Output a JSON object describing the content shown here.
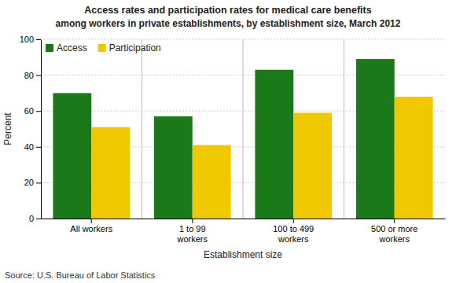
{
  "chart_data": {
    "type": "bar",
    "title": "Access rates and participation rates for medical care benefits",
    "subtitle": "among workers in private establishments, by establishment size, March 2012",
    "categories": [
      "All workers",
      "1 to 99\nworkers",
      "100 to 499\nworkers",
      "500 or more\nworkers"
    ],
    "series": [
      {
        "name": "Access",
        "color": "#1a7a1a",
        "values": [
          70,
          57,
          83,
          89
        ]
      },
      {
        "name": "Participation",
        "color": "#f0c800",
        "values": [
          51,
          41,
          59,
          68
        ]
      }
    ],
    "xlabel": "Establishment size",
    "ylabel": "Percent",
    "ylim": [
      0,
      100
    ],
    "yticks": [
      0,
      20,
      40,
      60,
      80,
      100
    ],
    "grid": true,
    "legend": "upper left",
    "source": "Source: U.S. Bureau of Labor Statistics"
  }
}
